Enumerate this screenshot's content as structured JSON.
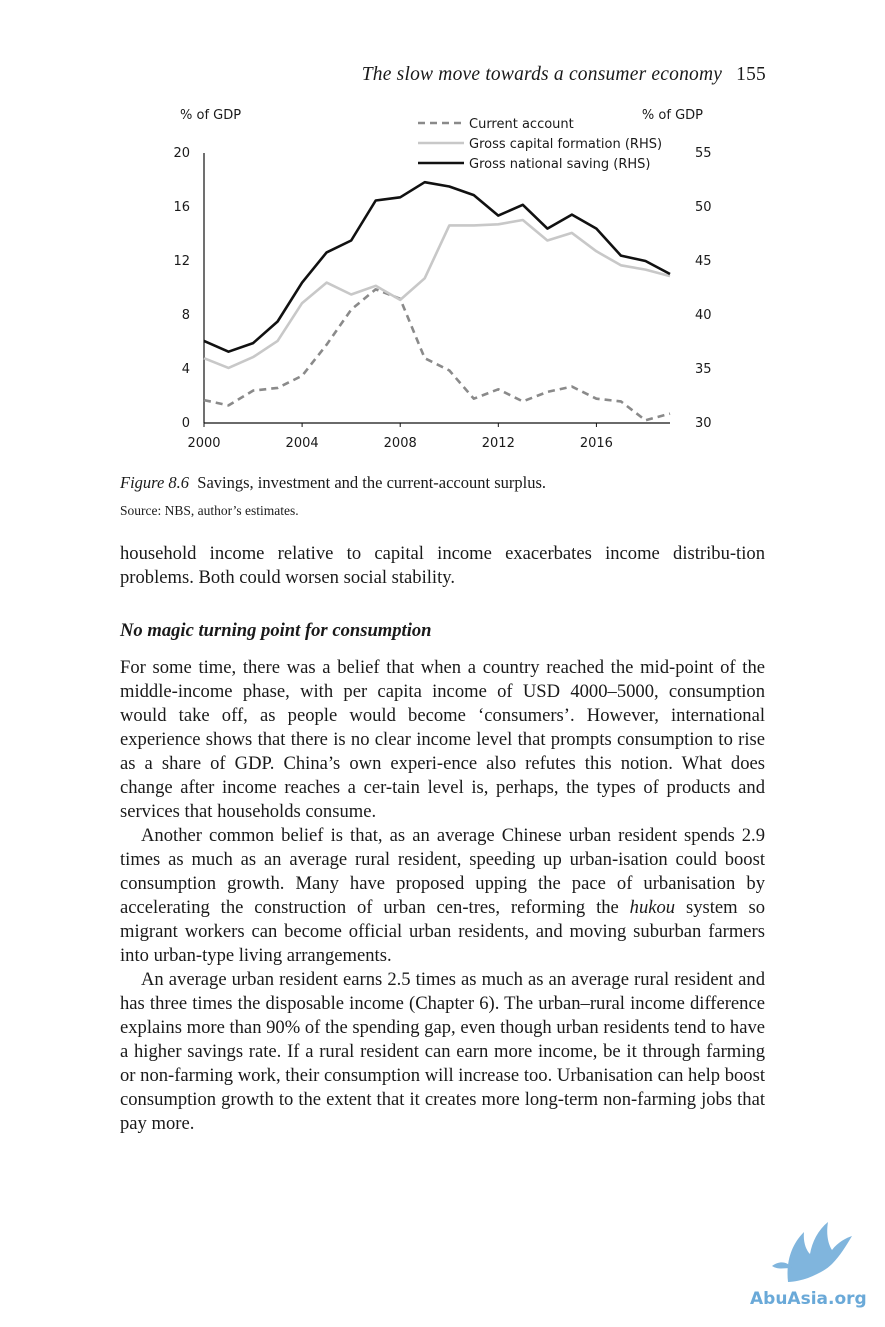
{
  "running_head": {
    "title": "The slow move towards a consumer economy",
    "page_number": "155"
  },
  "chart_data": {
    "type": "line",
    "left_axis": {
      "unit_label": "% of GDP",
      "ticks": [
        "0",
        "4",
        "8",
        "12",
        "16",
        "20"
      ],
      "range": [
        0,
        20
      ]
    },
    "right_axis": {
      "unit_label": "% of GDP",
      "ticks": [
        "30",
        "35",
        "40",
        "45",
        "50",
        "55"
      ],
      "range": [
        30,
        55
      ]
    },
    "x_ticks": [
      "2000",
      "2004",
      "2008",
      "2012",
      "2016"
    ],
    "x_range": [
      2000,
      2019
    ],
    "legend_position": "top-right",
    "series": [
      {
        "name": "Current account",
        "axis": "left",
        "style": "dashed",
        "color": "#8a8a8a",
        "x": [
          2000,
          2001,
          2002,
          2003,
          2004,
          2005,
          2006,
          2007,
          2008,
          2009,
          2010,
          2011,
          2012,
          2013,
          2014,
          2015,
          2016,
          2017,
          2018,
          2019
        ],
        "values": [
          1.7,
          1.3,
          2.4,
          2.6,
          3.5,
          5.8,
          8.4,
          9.9,
          9.2,
          4.8,
          3.9,
          1.8,
          2.5,
          1.6,
          2.3,
          2.7,
          1.8,
          1.6,
          0.2,
          0.7
        ]
      },
      {
        "name": "Gross capital formation (RHS)",
        "axis": "right",
        "style": "solid",
        "color": "#c8c8c8",
        "x": [
          2000,
          2001,
          2002,
          2003,
          2004,
          2005,
          2006,
          2007,
          2008,
          2009,
          2010,
          2011,
          2012,
          2013,
          2014,
          2015,
          2016,
          2017,
          2018,
          2019
        ],
        "values": [
          36.0,
          35.1,
          36.1,
          37.6,
          41.1,
          43.0,
          41.9,
          42.7,
          41.4,
          43.4,
          48.3,
          48.3,
          48.4,
          48.8,
          46.9,
          47.6,
          45.9,
          44.6,
          44.2,
          43.6
        ]
      },
      {
        "name": "Gross national saving (RHS)",
        "axis": "right",
        "style": "solid",
        "color": "#111111",
        "x": [
          2000,
          2001,
          2002,
          2003,
          2004,
          2005,
          2006,
          2007,
          2008,
          2009,
          2010,
          2011,
          2012,
          2013,
          2014,
          2015,
          2016,
          2017,
          2018,
          2019
        ],
        "values": [
          37.6,
          36.6,
          37.4,
          39.4,
          43.0,
          45.8,
          46.9,
          50.6,
          50.9,
          52.3,
          51.9,
          51.1,
          49.2,
          50.2,
          48.0,
          49.3,
          48.0,
          45.5,
          45.0,
          43.8
        ]
      }
    ]
  },
  "figure": {
    "label": "Figure 8.6",
    "caption": "Savings, investment and the current-account surplus.",
    "source": "Source: NBS, author’s estimates."
  },
  "body": {
    "continuation": "household income relative to capital income exacerbates income distribu-tion problems. Both could worsen social stability.",
    "section_heading": "No magic turning point for consumption",
    "paragraph_1": "For some time, there was a belief that when a country reached the mid-point of the middle-income phase, with per capita income of USD 4000–5000, consumption would take off, as people would become ‘consumers’. However, international experience shows that there is no clear income level that prompts consumption to rise as a share of GDP. China’s own experi-ence also refutes this notion. What does change after income reaches a cer-tain level is, perhaps, the types of products and services that households consume.",
    "paragraph_2_before": "Another common belief is that, as an average Chinese urban resident spends 2.9 times as much as an average rural resident, speeding up urban-isation could boost consumption growth. Many have proposed upping the pace of urbanisation by accelerating the construction of urban cen-tres, reforming the ",
    "paragraph_2_italic": "hukou",
    "paragraph_2_after": " system so migrant workers can become official urban residents, and moving suburban farmers into urban-type living arrangements.",
    "paragraph_3": "An average urban resident earns 2.5 times as much as an average rural resident and has three times the disposable income (Chapter 6). The urban–rural income difference explains more than 90% of the spending gap, even though urban residents tend to have a higher savings rate. If a rural resident can earn more income, be it through farming or non-farming work, their consumption will increase too. Urbanisation can help boost consumption growth to the extent that it creates more long-term non-farming jobs that pay more."
  },
  "watermark": {
    "text": "AbuAsia.org",
    "color": "#6aa9d8"
  }
}
